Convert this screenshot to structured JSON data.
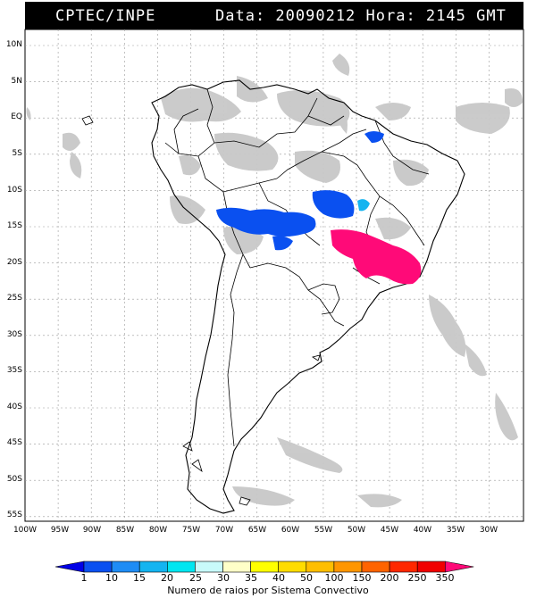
{
  "header": {
    "source": "CPTEC/INPE",
    "datetime": "Data: 20090212 Hora: 2145 GMT"
  },
  "map": {
    "lat_labels": [
      "10N",
      "5N",
      "EQ",
      "5S",
      "10S",
      "15S",
      "20S",
      "25S",
      "30S",
      "35S",
      "40S",
      "45S",
      "50S",
      "55S"
    ],
    "lon_labels": [
      "100W",
      "95W",
      "90W",
      "85W",
      "80W",
      "75W",
      "70W",
      "65W",
      "60W",
      "55W",
      "50W",
      "45W",
      "40W",
      "35W",
      "30W"
    ],
    "legend": {
      "title": "Numero de raios por Sistema Convectivo",
      "values": [
        "1",
        "10",
        "15",
        "20",
        "25",
        "30",
        "35",
        "40",
        "50",
        "100",
        "150",
        "200",
        "250",
        "350"
      ],
      "colors": [
        "#0000e6",
        "#0a50f0",
        "#1e8cf5",
        "#14b4f0",
        "#00e6f0",
        "#c8fafa",
        "#ffffc8",
        "#ffff00",
        "#ffdc00",
        "#ffbe00",
        "#ff9600",
        "#ff6400",
        "#ff2800",
        "#f00000",
        "#ff0a78"
      ]
    },
    "colors": {
      "cloud": "#c8c8c8",
      "blue_system": "#0a50f0",
      "cyan_system": "#14b4f0",
      "magenta_system": "#ff0a78"
    }
  }
}
